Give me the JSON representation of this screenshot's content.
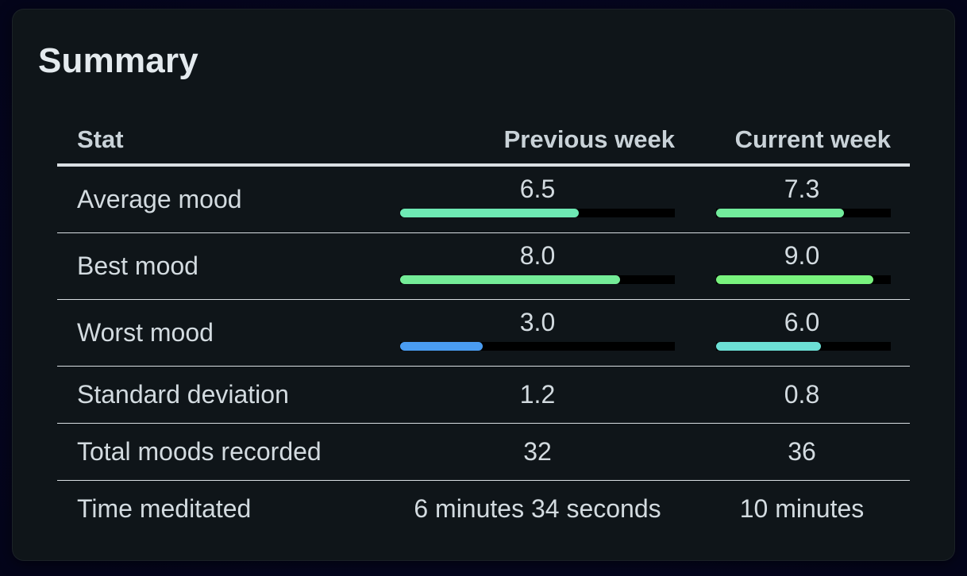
{
  "title": "Summary",
  "headers": {
    "stat": "Stat",
    "previous": "Previous week",
    "current": "Current week"
  },
  "bar_rows": [
    {
      "stat": "Average mood",
      "previous": "6.5",
      "current": "7.3",
      "previous_fill": 0.65,
      "current_fill": 0.73,
      "previous_color": "#6ee9b4",
      "current_color": "#72ec9c"
    },
    {
      "stat": "Best mood",
      "previous": "8.0",
      "current": "9.0",
      "previous_fill": 0.8,
      "current_fill": 0.9,
      "previous_color": "#74ec98",
      "current_color": "#79f37e"
    },
    {
      "stat": "Worst mood",
      "previous": "3.0",
      "current": "6.0",
      "previous_fill": 0.3,
      "current_fill": 0.6,
      "previous_color": "#4a9cf1",
      "current_color": "#6ce0d6"
    }
  ],
  "plain_rows": [
    {
      "stat": "Standard deviation",
      "previous": "1.2",
      "current": "0.8"
    },
    {
      "stat": "Total moods recorded",
      "previous": "32",
      "current": "36"
    },
    {
      "stat": "Time meditated",
      "previous": "6 minutes 34 seconds",
      "current": "10 minutes"
    }
  ]
}
